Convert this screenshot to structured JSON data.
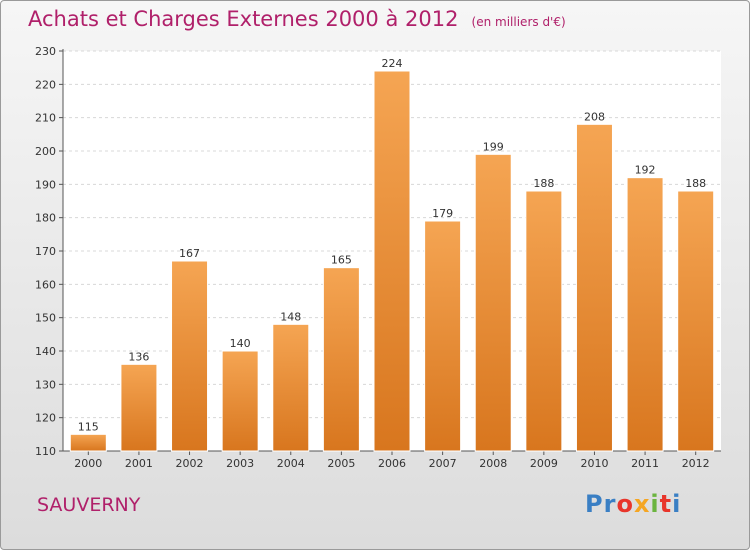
{
  "header": {
    "title": "Achats et Charges Externes 2000 à 2012",
    "unit": "(en milliers d'€)"
  },
  "footer": {
    "commune": "SAUVERNY",
    "logo_letters": [
      "P",
      "r",
      "o",
      "x",
      "i",
      "t",
      "i"
    ],
    "logo_colors": [
      "#3a7fc4",
      "#3a7fc4",
      "#e8352b",
      "#f5a623",
      "#6bb43f",
      "#e8352b",
      "#3a7fc4"
    ]
  },
  "colors": {
    "bar_light": "#f5a553",
    "bar_dark": "#d8761e",
    "title": "#b0206a"
  },
  "chart_data": {
    "type": "bar",
    "categories": [
      "2000",
      "2001",
      "2002",
      "2003",
      "2004",
      "2005",
      "2006",
      "2007",
      "2008",
      "2009",
      "2010",
      "2011",
      "2012"
    ],
    "values": [
      115,
      136,
      167,
      140,
      148,
      165,
      224,
      179,
      199,
      188,
      208,
      192,
      188
    ],
    "ylim": [
      110,
      230
    ],
    "yticks": [
      110,
      120,
      130,
      140,
      150,
      160,
      170,
      180,
      190,
      200,
      210,
      220,
      230
    ],
    "grid": true,
    "data_labels": true
  }
}
